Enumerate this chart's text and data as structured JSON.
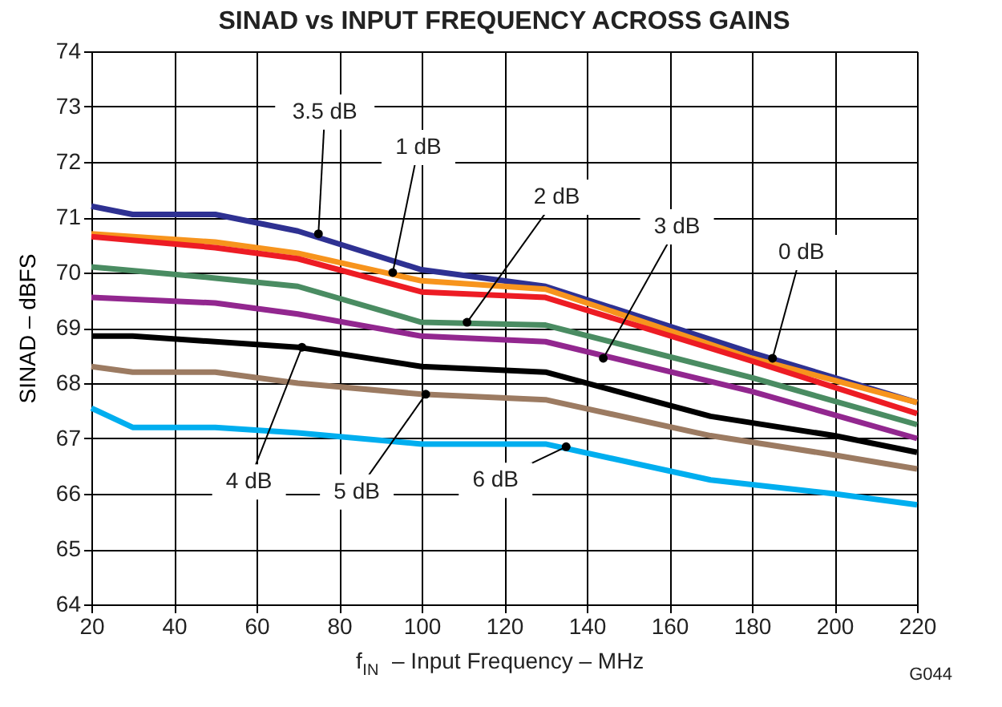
{
  "chart_data": {
    "type": "line",
    "title": "SINAD vs INPUT FREQUENCY ACROSS GAINS",
    "xlabel": "f$_{IN}$ – Input Frequency – MHz",
    "ylabel": "SINAD – dBFS",
    "xlim": [
      20,
      220
    ],
    "xticks": [
      20,
      40,
      60,
      80,
      100,
      120,
      140,
      160,
      180,
      200,
      220
    ],
    "ylim": [
      64,
      74
    ],
    "yticks": [
      64,
      65,
      66,
      67,
      68,
      69,
      70,
      71,
      72,
      73,
      74
    ],
    "grid": true,
    "marker": "none",
    "line_style": "solid",
    "series": [
      {
        "color": "#2e3192",
        "x": [
          20,
          30,
          50,
          70,
          100,
          130,
          180,
          220
        ],
        "values": [
          71.2,
          71.05,
          71.05,
          70.75,
          70.05,
          69.75,
          68.55,
          67.65
        ]
      },
      {
        "color": "#f7941d",
        "x": [
          20,
          50,
          70,
          100,
          130,
          180,
          220
        ],
        "values": [
          70.7,
          70.55,
          70.35,
          69.85,
          69.7,
          68.45,
          67.65
        ]
      },
      {
        "color": "#ed1c24",
        "x": [
          20,
          50,
          70,
          100,
          130,
          180,
          220
        ],
        "values": [
          70.65,
          70.45,
          70.25,
          69.65,
          69.55,
          68.4,
          67.45
        ]
      },
      {
        "color": "#4a8c62",
        "x": [
          20,
          50,
          70,
          100,
          130,
          180,
          220
        ],
        "values": [
          70.1,
          69.9,
          69.75,
          69.1,
          69.05,
          68.1,
          67.25
        ]
      },
      {
        "color": "#92278f",
        "x": [
          20,
          50,
          70,
          100,
          130,
          180,
          220
        ],
        "values": [
          69.55,
          69.45,
          69.25,
          68.85,
          68.75,
          67.85,
          67.0
        ]
      },
      {
        "color": "#000000",
        "x": [
          20,
          30,
          70,
          100,
          130,
          170,
          200,
          220
        ],
        "values": [
          68.85,
          68.85,
          68.65,
          68.3,
          68.2,
          67.4,
          67.05,
          66.75
        ]
      },
      {
        "color": "#9c7b62",
        "x": [
          20,
          30,
          50,
          70,
          100,
          130,
          170,
          200,
          220
        ],
        "values": [
          68.3,
          68.2,
          68.2,
          68.0,
          67.8,
          67.7,
          67.05,
          66.7,
          66.45
        ]
      },
      {
        "color": "#00aeef",
        "x": [
          20,
          30,
          50,
          70,
          100,
          130,
          170,
          200,
          220
        ],
        "values": [
          67.55,
          67.2,
          67.2,
          67.1,
          66.9,
          66.9,
          66.25,
          66.0,
          65.8
        ]
      }
    ],
    "annotations": [
      {
        "text": "3.5 dB",
        "x": 75,
        "y": 70.7
      },
      {
        "text": "1 dB",
        "x": 93,
        "y": 70.0
      },
      {
        "text": "2 dB",
        "x": 111,
        "y": 69.1
      },
      {
        "text": "3 dB",
        "x": 144,
        "y": 68.45
      },
      {
        "text": "0 dB",
        "x": 185,
        "y": 68.45
      },
      {
        "text": "4 dB",
        "x": 71,
        "y": 68.65
      },
      {
        "text": "5 dB",
        "x": 101,
        "y": 67.8
      },
      {
        "text": "6 dB",
        "x": 135,
        "y": 66.85
      },
      "G044"
    ]
  }
}
